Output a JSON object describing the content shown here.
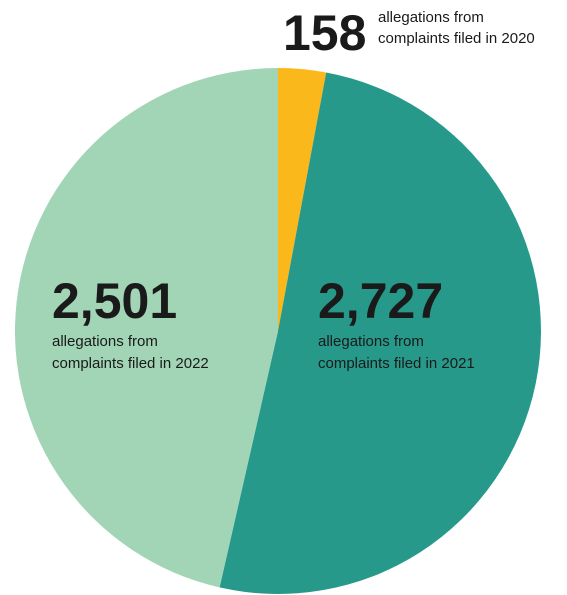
{
  "chart_data": {
    "type": "pie",
    "categories": [
      [
        "allegations from",
        "complaints filed in 2020"
      ],
      [
        "allegations from",
        "complaints filed in 2021"
      ],
      [
        "allegations from",
        "complaints filed in 2022"
      ]
    ],
    "values": [
      158,
      2727,
      2501
    ],
    "value_labels": [
      "158",
      "2,727",
      "2,501"
    ],
    "colors": [
      "#fbb81b",
      "#26998a",
      "#a1d5b6"
    ]
  }
}
